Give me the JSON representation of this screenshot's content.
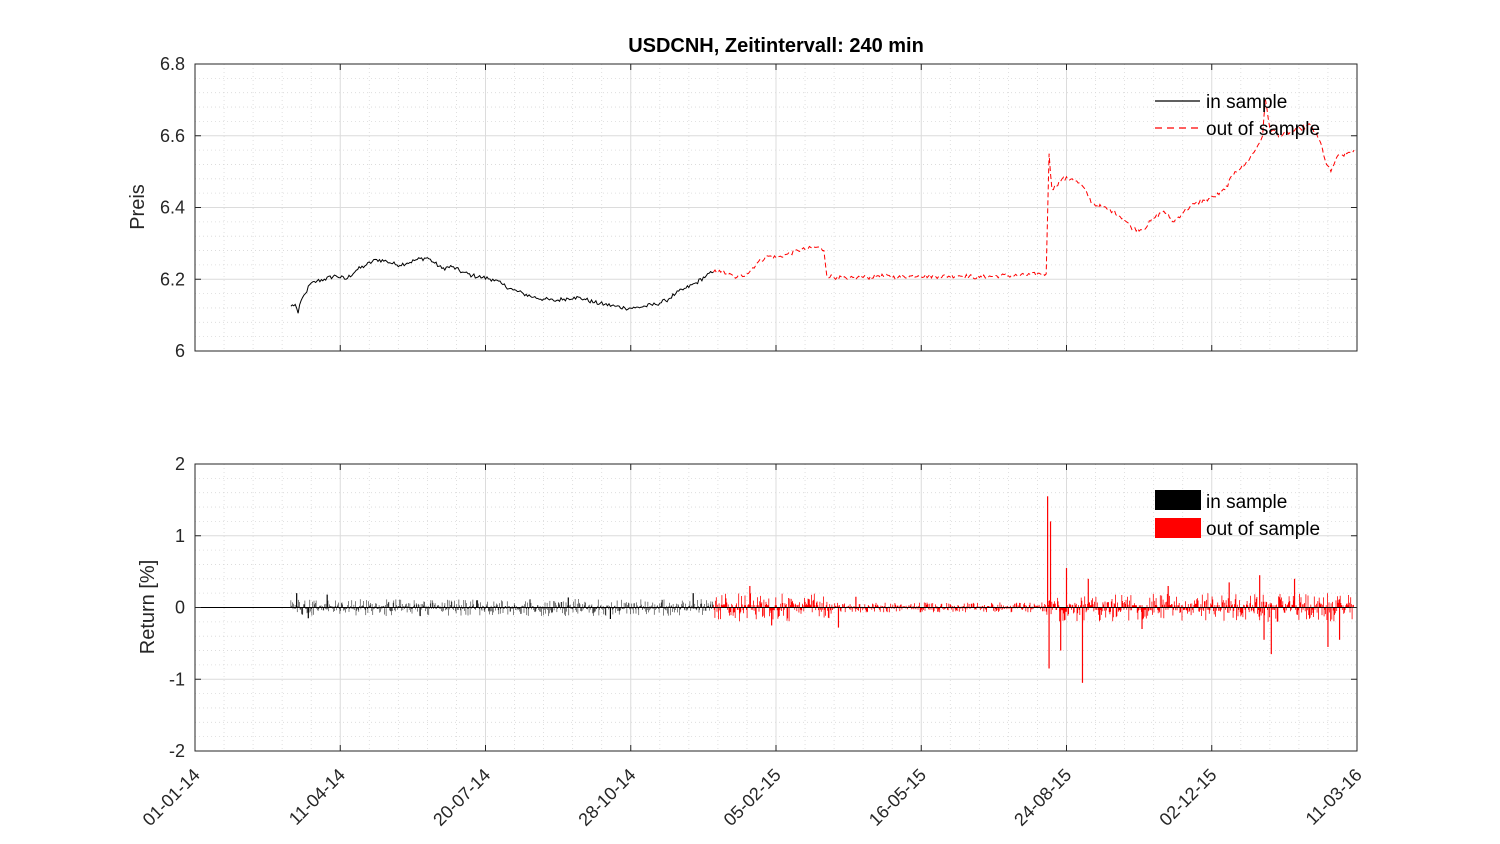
{
  "chart_data": [
    {
      "type": "line",
      "title": "USDCNH, Zeitintervall: 240 min",
      "xlabel": "",
      "ylabel": "Preis",
      "ylim": [
        6,
        6.8
      ],
      "yticks": [
        6,
        6.2,
        6.4,
        6.6,
        6.8
      ],
      "ytick_labels": [
        "6",
        "6.2",
        "6.4",
        "6.6",
        "6.8"
      ],
      "x_axis": "date",
      "xlim": [
        "2014-01-01",
        "2016-03-11"
      ],
      "xtick_labels": [
        "01-01-14",
        "11-04-14",
        "20-07-14",
        "28-10-14",
        "05-02-15",
        "16-05-15",
        "24-08-15",
        "02-12-15",
        "11-03-16"
      ],
      "grid": "major and minor",
      "legend_position": "top-right",
      "series": [
        {
          "name": "in sample",
          "style": "solid",
          "color": "#000000",
          "points": [
            [
              "2014-03-08",
              6.125
            ],
            [
              "2014-03-11",
              6.13
            ],
            [
              "2014-03-13",
              6.105
            ],
            [
              "2014-03-15",
              6.14
            ],
            [
              "2014-03-18",
              6.16
            ],
            [
              "2014-03-21",
              6.185
            ],
            [
              "2014-03-26",
              6.195
            ],
            [
              "2014-03-31",
              6.2
            ],
            [
              "2014-04-08",
              6.21
            ],
            [
              "2014-04-15",
              6.2
            ],
            [
              "2014-04-22",
              6.225
            ],
            [
              "2014-04-29",
              6.24
            ],
            [
              "2014-05-06",
              6.255
            ],
            [
              "2014-05-13",
              6.25
            ],
            [
              "2014-05-20",
              6.24
            ],
            [
              "2014-05-27",
              6.245
            ],
            [
              "2014-06-03",
              6.255
            ],
            [
              "2014-06-10",
              6.26
            ],
            [
              "2014-06-15",
              6.245
            ],
            [
              "2014-06-20",
              6.23
            ],
            [
              "2014-06-27",
              6.235
            ],
            [
              "2014-07-04",
              6.22
            ],
            [
              "2014-07-11",
              6.21
            ],
            [
              "2014-07-18",
              6.205
            ],
            [
              "2014-07-25",
              6.2
            ],
            [
              "2014-08-01",
              6.185
            ],
            [
              "2014-08-08",
              6.17
            ],
            [
              "2014-08-15",
              6.16
            ],
            [
              "2014-08-22",
              6.15
            ],
            [
              "2014-08-29",
              6.145
            ],
            [
              "2014-09-05",
              6.14
            ],
            [
              "2014-09-12",
              6.145
            ],
            [
              "2014-09-19",
              6.15
            ],
            [
              "2014-09-26",
              6.145
            ],
            [
              "2014-10-03",
              6.135
            ],
            [
              "2014-10-10",
              6.13
            ],
            [
              "2014-10-17",
              6.125
            ],
            [
              "2014-10-24",
              6.12
            ],
            [
              "2014-10-31",
              6.12
            ],
            [
              "2014-11-07",
              6.125
            ],
            [
              "2014-11-14",
              6.13
            ],
            [
              "2014-11-21",
              6.14
            ],
            [
              "2014-11-28",
              6.16
            ],
            [
              "2014-12-05",
              6.175
            ],
            [
              "2014-12-12",
              6.19
            ],
            [
              "2014-12-19",
              6.21
            ],
            [
              "2014-12-24",
              6.22
            ]
          ]
        },
        {
          "name": "out of sample",
          "style": "dashed",
          "color": "#ff0000",
          "points": [
            [
              "2014-12-24",
              6.22
            ],
            [
              "2014-12-28",
              6.225
            ],
            [
              "2015-01-02",
              6.215
            ],
            [
              "2015-01-09",
              6.205
            ],
            [
              "2015-01-16",
              6.215
            ],
            [
              "2015-01-23",
              6.245
            ],
            [
              "2015-01-30",
              6.265
            ],
            [
              "2015-02-06",
              6.26
            ],
            [
              "2015-02-13",
              6.27
            ],
            [
              "2015-02-20",
              6.28
            ],
            [
              "2015-02-27",
              6.285
            ],
            [
              "2015-03-06",
              6.29
            ],
            [
              "2015-03-10",
              6.28
            ],
            [
              "2015-03-12",
              6.21
            ],
            [
              "2015-03-19",
              6.205
            ],
            [
              "2015-03-26",
              6.2
            ],
            [
              "2015-04-02",
              6.205
            ],
            [
              "2015-04-09",
              6.205
            ],
            [
              "2015-04-16",
              6.21
            ],
            [
              "2015-04-30",
              6.205
            ],
            [
              "2015-05-14",
              6.21
            ],
            [
              "2015-05-28",
              6.208
            ],
            [
              "2015-06-11",
              6.21
            ],
            [
              "2015-06-25",
              6.205
            ],
            [
              "2015-07-09",
              6.21
            ],
            [
              "2015-07-23",
              6.21
            ],
            [
              "2015-08-06",
              6.215
            ],
            [
              "2015-08-10",
              6.215
            ],
            [
              "2015-08-11",
              6.38
            ],
            [
              "2015-08-12",
              6.55
            ],
            [
              "2015-08-14",
              6.45
            ],
            [
              "2015-08-21",
              6.48
            ],
            [
              "2015-08-28",
              6.48
            ],
            [
              "2015-09-04",
              6.46
            ],
            [
              "2015-09-11",
              6.41
            ],
            [
              "2015-09-18",
              6.4
            ],
            [
              "2015-09-25",
              6.39
            ],
            [
              "2015-10-02",
              6.37
            ],
            [
              "2015-10-09",
              6.34
            ],
            [
              "2015-10-16",
              6.34
            ],
            [
              "2015-10-23",
              6.37
            ],
            [
              "2015-10-30",
              6.39
            ],
            [
              "2015-11-06",
              6.36
            ],
            [
              "2015-11-13",
              6.39
            ],
            [
              "2015-11-20",
              6.41
            ],
            [
              "2015-11-27",
              6.42
            ],
            [
              "2015-12-04",
              6.43
            ],
            [
              "2015-12-11",
              6.45
            ],
            [
              "2015-12-18",
              6.5
            ],
            [
              "2015-12-25",
              6.52
            ],
            [
              "2016-01-01",
              6.56
            ],
            [
              "2016-01-06",
              6.6
            ],
            [
              "2016-01-08",
              6.7
            ],
            [
              "2016-01-11",
              6.62
            ],
            [
              "2016-01-18",
              6.6
            ],
            [
              "2016-01-25",
              6.61
            ],
            [
              "2016-02-01",
              6.62
            ],
            [
              "2016-02-08",
              6.63
            ],
            [
              "2016-02-15",
              6.58
            ],
            [
              "2016-02-19",
              6.52
            ],
            [
              "2016-02-22",
              6.5
            ],
            [
              "2016-02-26",
              6.54
            ],
            [
              "2016-03-04",
              6.55
            ],
            [
              "2016-03-09",
              6.56
            ]
          ]
        }
      ]
    },
    {
      "type": "line",
      "title": "",
      "xlabel": "",
      "ylabel": "Return [%]",
      "ylim": [
        -2,
        2
      ],
      "yticks": [
        -2,
        -1,
        0,
        1,
        2
      ],
      "ytick_labels": [
        "-2",
        "-1",
        "0",
        "1",
        "2"
      ],
      "x_axis": "date",
      "xlim": [
        "2014-01-01",
        "2016-03-11"
      ],
      "xtick_labels": [
        "01-01-14",
        "11-04-14",
        "20-07-14",
        "28-10-14",
        "05-02-15",
        "16-05-15",
        "24-08-15",
        "02-12-15",
        "11-03-16"
      ],
      "grid": "major and minor",
      "legend_position": "top-right",
      "series": [
        {
          "name": "in sample",
          "color": "#000000",
          "segments": [
            {
              "start": "2014-03-08",
              "end": "2014-12-24",
              "amplitude": 0.12
            }
          ],
          "spikes": [
            [
              "2014-03-12",
              0.2
            ],
            [
              "2014-03-20",
              -0.15
            ],
            [
              "2014-04-02",
              0.18
            ],
            [
              "2014-06-05",
              -0.12
            ],
            [
              "2014-07-14",
              0.1
            ],
            [
              "2014-09-15",
              0.14
            ],
            [
              "2014-10-14",
              -0.16
            ],
            [
              "2014-12-10",
              0.2
            ]
          ]
        },
        {
          "name": "out of sample",
          "color": "#ff0000",
          "segments": [
            {
              "start": "2014-12-24",
              "end": "2015-03-15",
              "amplitude": 0.2
            },
            {
              "start": "2015-03-15",
              "end": "2015-08-10",
              "amplitude": 0.07
            },
            {
              "start": "2015-08-10",
              "end": "2016-03-09",
              "amplitude": 0.2
            }
          ],
          "spikes": [
            [
              "2015-01-18",
              0.3
            ],
            [
              "2015-02-02",
              -0.25
            ],
            [
              "2015-03-20",
              -0.28
            ],
            [
              "2015-04-01",
              0.15
            ],
            [
              "2015-08-11",
              1.55
            ],
            [
              "2015-08-12",
              -0.85
            ],
            [
              "2015-08-13",
              1.2
            ],
            [
              "2015-08-20",
              -0.6
            ],
            [
              "2015-08-24",
              0.55
            ],
            [
              "2015-09-04",
              -1.05
            ],
            [
              "2015-09-08",
              0.4
            ],
            [
              "2015-10-15",
              -0.3
            ],
            [
              "2015-11-02",
              0.3
            ],
            [
              "2015-12-14",
              0.35
            ],
            [
              "2016-01-04",
              0.45
            ],
            [
              "2016-01-07",
              -0.45
            ],
            [
              "2016-01-12",
              -0.65
            ],
            [
              "2016-01-28",
              0.4
            ],
            [
              "2016-02-20",
              -0.55
            ],
            [
              "2016-02-28",
              -0.45
            ]
          ]
        }
      ]
    }
  ]
}
